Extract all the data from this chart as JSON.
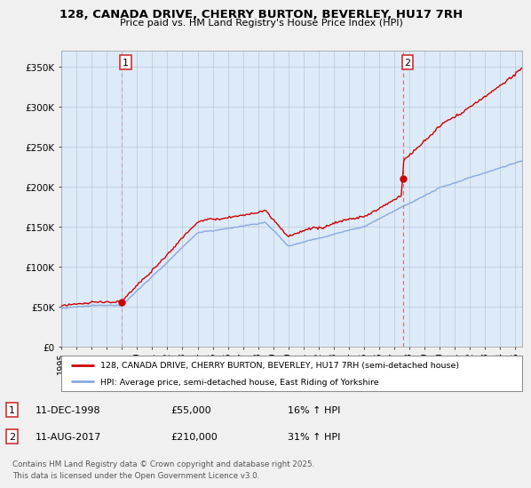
{
  "title_line1": "128, CANADA DRIVE, CHERRY BURTON, BEVERLEY, HU17 7RH",
  "title_line2": "Price paid vs. HM Land Registry's House Price Index (HPI)",
  "ylabel_ticks": [
    "£0",
    "£50K",
    "£100K",
    "£150K",
    "£200K",
    "£250K",
    "£300K",
    "£350K"
  ],
  "ytick_values": [
    0,
    50000,
    100000,
    150000,
    200000,
    250000,
    300000,
    350000
  ],
  "ylim": [
    0,
    370000
  ],
  "xlim_start": 1995.0,
  "xlim_end": 2025.5,
  "sale1": {
    "date": 1998.95,
    "price": 55000,
    "label": "1"
  },
  "sale2": {
    "date": 2017.6,
    "price": 210000,
    "label": "2"
  },
  "legend_label_red": "128, CANADA DRIVE, CHERRY BURTON, BEVERLEY, HU17 7RH (semi-detached house)",
  "legend_label_blue": "HPI: Average price, semi-detached house, East Riding of Yorkshire",
  "annotation1": {
    "num": "1",
    "date_str": "11-DEC-1998",
    "price_str": "£55,000",
    "hpi_str": "16% ↑ HPI"
  },
  "annotation2": {
    "num": "2",
    "date_str": "11-AUG-2017",
    "price_str": "£210,000",
    "hpi_str": "31% ↑ HPI"
  },
  "footer": "Contains HM Land Registry data © Crown copyright and database right 2025.\nThis data is licensed under the Open Government Licence v3.0.",
  "color_red": "#cc0000",
  "color_blue": "#88aadd",
  "color_vline": "#dd5555",
  "bg_color": "#f0f0f0",
  "plot_bg": "#ddeaf8",
  "xticks": [
    1995,
    1996,
    1997,
    1998,
    1999,
    2000,
    2001,
    2002,
    2003,
    2004,
    2005,
    2006,
    2007,
    2008,
    2009,
    2010,
    2011,
    2012,
    2013,
    2014,
    2015,
    2016,
    2017,
    2018,
    2019,
    2020,
    2021,
    2022,
    2023,
    2024,
    2025
  ]
}
